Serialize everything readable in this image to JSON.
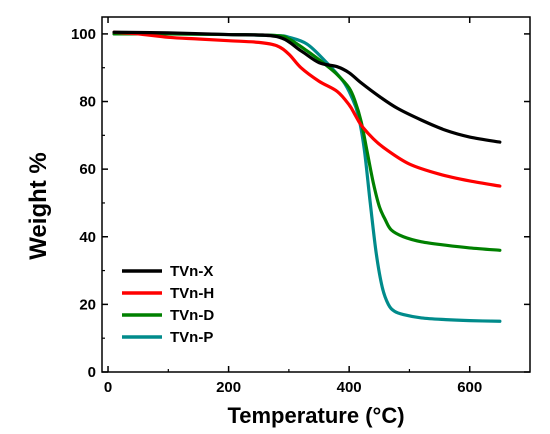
{
  "chart_data": {
    "type": "line",
    "xlabel": "Temperature (°C)",
    "ylabel": "Weight %",
    "xlim": [
      -10,
      700
    ],
    "ylim": [
      0,
      105
    ],
    "xticks": [
      0,
      200,
      400,
      600
    ],
    "yticks": [
      0,
      20,
      40,
      60,
      80,
      100
    ],
    "grid": false,
    "legend_position": "bottom-left",
    "series": [
      {
        "name": "TVn-X",
        "color": "#000000",
        "x": [
          10,
          100,
          200,
          280,
          320,
          350,
          380,
          400,
          420,
          450,
          480,
          520,
          560,
          600,
          650
        ],
        "y": [
          100.5,
          100.3,
          99.8,
          99.2,
          95,
          91.5,
          90.3,
          88.5,
          85.5,
          81.5,
          78,
          74.5,
          71.5,
          69.5,
          68
        ]
      },
      {
        "name": "TVn-H",
        "color": "#ff0000",
        "x": [
          10,
          50,
          100,
          150,
          200,
          250,
          280,
          300,
          320,
          350,
          380,
          400,
          410,
          420,
          440,
          460,
          500,
          550,
          600,
          650
        ],
        "y": [
          100.5,
          100,
          99,
          98.5,
          98,
          97.5,
          96.5,
          94,
          90,
          86,
          83,
          79,
          76,
          73,
          69,
          66,
          61.5,
          58.5,
          56.5,
          55
        ]
      },
      {
        "name": "TVn-D",
        "color": "#008000",
        "x": [
          10,
          100,
          200,
          280,
          300,
          330,
          360,
          380,
          400,
          410,
          420,
          430,
          440,
          450,
          460,
          470,
          490,
          520,
          560,
          600,
          650
        ],
        "y": [
          100,
          100,
          99.8,
          99.5,
          98.5,
          95,
          91,
          88,
          84,
          80,
          74,
          65,
          56,
          49,
          45,
          42,
          40,
          38.5,
          37.5,
          36.7,
          36
        ]
      },
      {
        "name": "TVn-P",
        "color": "#008b8b",
        "x": [
          10,
          100,
          200,
          280,
          300,
          330,
          360,
          390,
          405,
          415,
          425,
          435,
          445,
          455,
          465,
          475,
          490,
          520,
          560,
          600,
          650
        ],
        "y": [
          100,
          100,
          99.8,
          99.5,
          99,
          97,
          92,
          86,
          81,
          76,
          66,
          50,
          35,
          25,
          20,
          18,
          17,
          16,
          15.5,
          15.2,
          15
        ]
      }
    ]
  }
}
